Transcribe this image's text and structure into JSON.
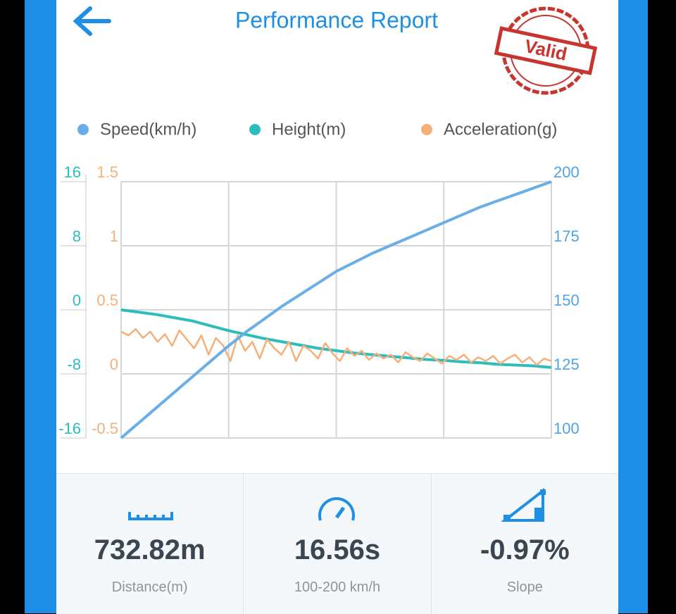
{
  "header": {
    "title": "Performance Report",
    "stamp": "Valid"
  },
  "chart_data": {
    "type": "line",
    "series": [
      {
        "name": "Speed(km/h)",
        "color": "#6aaee8",
        "axis": "y3",
        "values": [
          100,
          106,
          112,
          118,
          124,
          130,
          136,
          141.5,
          146.5,
          151.5,
          156,
          160.5,
          165,
          168.5,
          172,
          175,
          178,
          181,
          184,
          187,
          190,
          192.5,
          195,
          197.5,
          200
        ]
      },
      {
        "name": "Height(m)",
        "color": "#2dbdbd",
        "axis": "y",
        "values": [
          0,
          -0.3,
          -0.6,
          -1,
          -1.4,
          -2,
          -2.6,
          -3.1,
          -3.6,
          -4,
          -4.4,
          -4.8,
          -5.1,
          -5.4,
          -5.6,
          -5.8,
          -6,
          -6.2,
          -6.3,
          -6.5,
          -6.6,
          -6.8,
          -6.9,
          -7,
          -7.2
        ]
      },
      {
        "name": "Acceleration(g)",
        "color": "#f5b07a",
        "axis": "y2",
        "values": [
          0.33,
          0.3,
          0.35,
          0.28,
          0.33,
          0.25,
          0.31,
          0.22,
          0.34,
          0.27,
          0.2,
          0.3,
          0.15,
          0.28,
          0.22,
          0.1,
          0.3,
          0.18,
          0.25,
          0.12,
          0.27,
          0.2,
          0.15,
          0.25,
          0.1,
          0.22,
          0.18,
          0.12,
          0.24,
          0.16,
          0.1,
          0.2,
          0.14,
          0.18,
          0.11,
          0.16,
          0.12,
          0.15,
          0.09,
          0.17,
          0.13,
          0.1,
          0.16,
          0.12,
          0.08,
          0.14,
          0.11,
          0.15,
          0.09,
          0.13,
          0.1,
          0.14,
          0.08,
          0.12,
          0.15,
          0.09,
          0.13,
          0.07,
          0.12,
          0.1
        ]
      }
    ],
    "ylim": [
      -16,
      16
    ],
    "yticks": [
      -16,
      -8,
      0,
      8,
      16
    ],
    "y2lim": [
      -0.5,
      1.5
    ],
    "y2ticks": [
      -0.5,
      0,
      0.5,
      1,
      1.5
    ],
    "y3lim": [
      100,
      200
    ],
    "y3ticks": [
      100,
      125,
      150,
      175,
      200
    ],
    "grid": true
  },
  "stats": [
    {
      "value": "732.82m",
      "label": "Distance(m)"
    },
    {
      "value": "16.56s",
      "label": "100-200 km/h"
    },
    {
      "value": "-0.97%",
      "label": "Slope"
    }
  ]
}
